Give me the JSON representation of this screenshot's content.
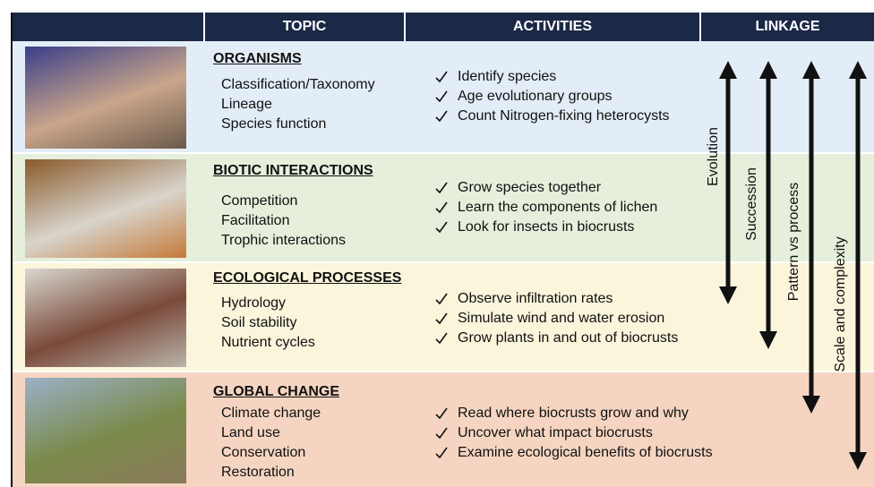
{
  "header": {
    "columns": [
      "TOPIC",
      "ACTIVITIES",
      "LINKAGE"
    ]
  },
  "rows": [
    {
      "title": "ORGANISMS",
      "items": [
        "Classification/Taxonomy",
        "Lineage",
        "Species function"
      ],
      "activities": [
        "Identify species",
        "Age evolutionary groups",
        "Count Nitrogen-fixing heterocysts"
      ]
    },
    {
      "title": "BIOTIC INTERACTIONS",
      "items": [
        "Competition",
        "Facilitation",
        "Trophic interactions"
      ],
      "activities": [
        "Grow species together",
        "Learn the components of lichen",
        "Look for insects in biocrusts"
      ]
    },
    {
      "title": "ECOLOGICAL PROCESSES",
      "items": [
        "Hydrology",
        "Soil stability",
        "Nutrient cycles"
      ],
      "activities": [
        "Observe infiltration rates",
        "Simulate wind and water erosion",
        "Grow plants in and out of biocrusts"
      ]
    },
    {
      "title": "GLOBAL CHANGE",
      "items": [
        "Climate change",
        "Land use",
        "Conservation",
        "Restoration"
      ],
      "activities": [
        "Read where biocrusts grow and why",
        "Uncover what impact biocrusts",
        "Examine ecological benefits of biocrusts"
      ]
    }
  ],
  "linkage": [
    "Evolution",
    "Succession",
    "Pattern vs process",
    "Scale and complexity"
  ]
}
